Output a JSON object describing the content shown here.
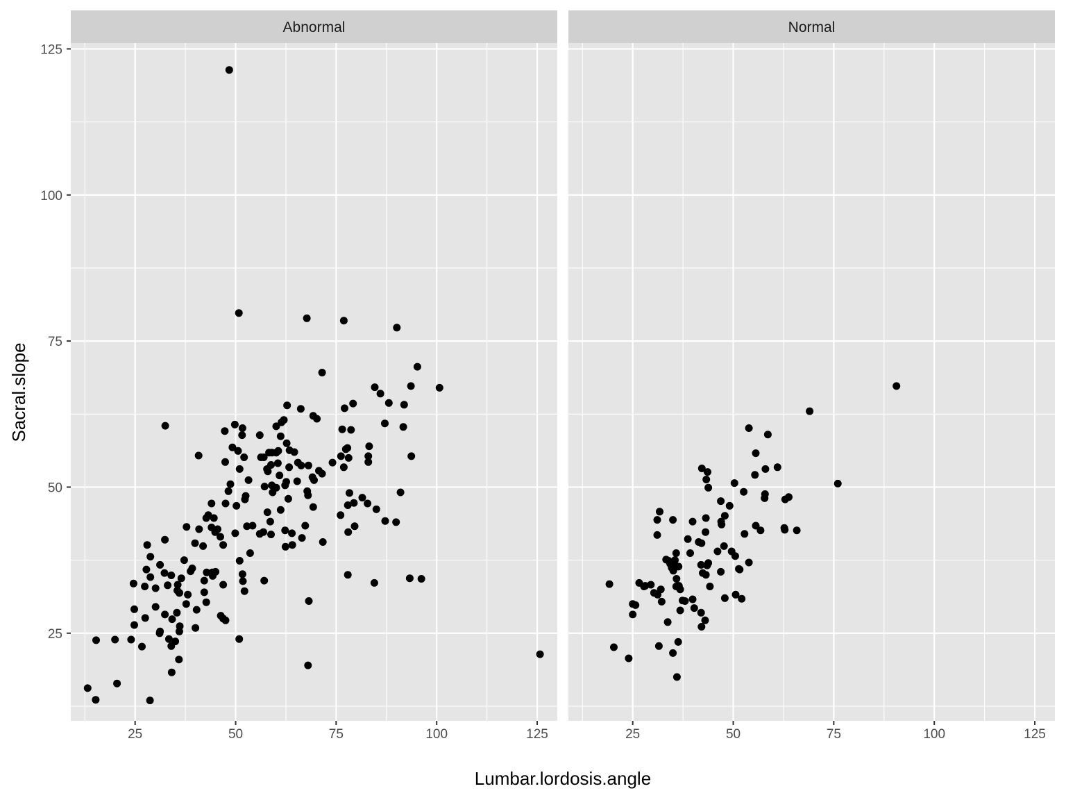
{
  "chart_data": {
    "type": "scatter",
    "facet_variable": "class",
    "xlabel": "Lumbar.lordosis.angle",
    "ylabel": "Sacral.slope",
    "xlim": [
      9,
      130
    ],
    "ylim": [
      10,
      126
    ],
    "x_ticks": [
      25,
      50,
      75,
      100,
      125
    ],
    "y_ticks": [
      25,
      50,
      75,
      100,
      125
    ],
    "grid": true,
    "colors": {
      "panel_bg": "#e5e5e5",
      "strip_bg": "#d0d0d0",
      "grid": "#ffffff",
      "point": "#000000"
    },
    "panels": [
      {
        "label": "Abnormal",
        "points": [
          [
            48.4,
            121.4
          ],
          [
            50.8,
            79.8
          ],
          [
            67.7,
            78.9
          ],
          [
            76.9,
            78.5
          ],
          [
            90.1,
            77.3
          ],
          [
            95.2,
            70.6
          ],
          [
            71.5,
            69.6
          ],
          [
            100.7,
            67.0
          ],
          [
            93.6,
            67.3
          ],
          [
            84.6,
            67.1
          ],
          [
            86.0,
            66.0
          ],
          [
            88.1,
            64.4
          ],
          [
            91.9,
            64.1
          ],
          [
            79.2,
            64.3
          ],
          [
            77.1,
            63.5
          ],
          [
            62.8,
            64.0
          ],
          [
            66.2,
            63.4
          ],
          [
            69.3,
            62.2
          ],
          [
            70.2,
            61.7
          ],
          [
            62.0,
            61.5
          ],
          [
            60.1,
            60.4
          ],
          [
            61.4,
            61.1
          ],
          [
            49.8,
            60.7
          ],
          [
            51.7,
            60.1
          ],
          [
            47.3,
            59.6
          ],
          [
            32.5,
            60.5
          ],
          [
            76.5,
            59.9
          ],
          [
            78.7,
            59.8
          ],
          [
            87.1,
            60.9
          ],
          [
            91.7,
            60.3
          ],
          [
            51.6,
            58.9
          ],
          [
            56.0,
            58.9
          ],
          [
            61.2,
            58.7
          ],
          [
            62.7,
            57.5
          ],
          [
            63.4,
            56.3
          ],
          [
            64.6,
            56.0
          ],
          [
            60.6,
            56.2
          ],
          [
            60.1,
            55.9
          ],
          [
            59.0,
            55.9
          ],
          [
            56.3,
            55.1
          ],
          [
            52.1,
            55.1
          ],
          [
            58.3,
            55.9
          ],
          [
            57.0,
            55.1
          ],
          [
            49.2,
            56.8
          ],
          [
            50.6,
            56.2
          ],
          [
            40.8,
            55.4
          ],
          [
            76.2,
            55.3
          ],
          [
            78.1,
            55.0
          ],
          [
            83.0,
            55.3
          ],
          [
            77.4,
            56.5
          ],
          [
            77.8,
            56.7
          ],
          [
            83.2,
            57.0
          ],
          [
            93.7,
            55.3
          ],
          [
            74.1,
            54.2
          ],
          [
            65.5,
            54.2
          ],
          [
            66.3,
            53.7
          ],
          [
            68.1,
            53.7
          ],
          [
            63.3,
            53.4
          ],
          [
            60.5,
            54.1
          ],
          [
            58.8,
            53.8
          ],
          [
            57.8,
            53.1
          ],
          [
            58.0,
            52.7
          ],
          [
            51.0,
            53.1
          ],
          [
            47.4,
            54.3
          ],
          [
            70.7,
            52.8
          ],
          [
            71.5,
            52.3
          ],
          [
            76.9,
            53.4
          ],
          [
            83.0,
            54.3
          ],
          [
            60.9,
            52.0
          ],
          [
            62.6,
            50.9
          ],
          [
            65.3,
            51.0
          ],
          [
            69.1,
            51.7
          ],
          [
            69.5,
            51.2
          ],
          [
            53.2,
            51.2
          ],
          [
            48.7,
            50.5
          ],
          [
            57.2,
            50.1
          ],
          [
            59.0,
            50.3
          ],
          [
            60.1,
            49.9
          ],
          [
            62.3,
            50.3
          ],
          [
            67.8,
            49.3
          ],
          [
            68.0,
            48.6
          ],
          [
            48.2,
            49.3
          ],
          [
            52.5,
            48.5
          ],
          [
            59.2,
            49.1
          ],
          [
            63.1,
            48.0
          ],
          [
            52.3,
            47.9
          ],
          [
            47.5,
            47.2
          ],
          [
            50.2,
            46.8
          ],
          [
            61.2,
            46.1
          ],
          [
            69.3,
            46.6
          ],
          [
            78.3,
            49.0
          ],
          [
            91.0,
            49.1
          ],
          [
            77.9,
            46.9
          ],
          [
            79.4,
            47.3
          ],
          [
            81.5,
            48.2
          ],
          [
            82.8,
            47.2
          ],
          [
            85.0,
            46.2
          ],
          [
            87.2,
            44.2
          ],
          [
            89.9,
            44.0
          ],
          [
            76.1,
            45.2
          ],
          [
            57.9,
            45.7
          ],
          [
            44.0,
            47.2
          ],
          [
            42.7,
            44.7
          ],
          [
            43.2,
            45.2
          ],
          [
            44.6,
            44.7
          ],
          [
            58.6,
            44.1
          ],
          [
            78.0,
            42.3
          ],
          [
            79.6,
            43.3
          ],
          [
            62.3,
            42.6
          ],
          [
            64.0,
            42.1
          ],
          [
            66.5,
            41.3
          ],
          [
            67.3,
            43.4
          ],
          [
            56.9,
            42.3
          ],
          [
            56.0,
            42.0
          ],
          [
            58.8,
            41.9
          ],
          [
            54.2,
            43.4
          ],
          [
            52.8,
            43.3
          ],
          [
            49.9,
            42.1
          ],
          [
            45.5,
            42.8
          ],
          [
            46.2,
            41.5
          ],
          [
            44.0,
            43.1
          ],
          [
            44.9,
            42.3
          ],
          [
            40.9,
            42.8
          ],
          [
            37.8,
            43.2
          ],
          [
            39.9,
            40.4
          ],
          [
            41.9,
            39.9
          ],
          [
            46.9,
            40.1
          ],
          [
            62.4,
            39.8
          ],
          [
            64.1,
            40.1
          ],
          [
            71.7,
            40.6
          ],
          [
            32.4,
            41.0
          ],
          [
            28.0,
            40.1
          ],
          [
            28.8,
            38.1
          ],
          [
            51.0,
            37.4
          ],
          [
            53.6,
            38.7
          ],
          [
            37.2,
            37.5
          ],
          [
            31.2,
            36.7
          ],
          [
            27.8,
            35.9
          ],
          [
            32.3,
            35.3
          ],
          [
            34.0,
            34.9
          ],
          [
            36.5,
            34.4
          ],
          [
            38.8,
            35.6
          ],
          [
            39.2,
            36.1
          ],
          [
            42.8,
            35.4
          ],
          [
            44.2,
            35.4
          ],
          [
            45.0,
            35.5
          ],
          [
            44.3,
            34.8
          ],
          [
            51.7,
            35.1
          ],
          [
            77.9,
            35.0
          ],
          [
            93.3,
            34.4
          ],
          [
            96.2,
            34.3
          ],
          [
            28.8,
            34.6
          ],
          [
            33.1,
            33.2
          ],
          [
            35.6,
            33.3
          ],
          [
            35.5,
            32.3
          ],
          [
            36.0,
            31.9
          ],
          [
            38.1,
            31.6
          ],
          [
            42.2,
            32.0
          ],
          [
            42.2,
            34.0
          ],
          [
            46.9,
            33.3
          ],
          [
            51.8,
            33.9
          ],
          [
            52.2,
            32.2
          ],
          [
            57.1,
            34.0
          ],
          [
            84.5,
            33.6
          ],
          [
            24.6,
            33.5
          ],
          [
            27.4,
            33.0
          ],
          [
            30.1,
            32.7
          ],
          [
            36.0,
            31.9
          ],
          [
            32.4,
            28.2
          ],
          [
            35.4,
            28.5
          ],
          [
            37.7,
            30.0
          ],
          [
            40.3,
            29.0
          ],
          [
            42.7,
            30.3
          ],
          [
            34.2,
            27.4
          ],
          [
            46.3,
            28.0
          ],
          [
            46.9,
            27.5
          ],
          [
            47.5,
            27.2
          ],
          [
            68.2,
            30.5
          ],
          [
            24.8,
            29.1
          ],
          [
            27.5,
            27.6
          ],
          [
            30.1,
            29.5
          ],
          [
            31.1,
            25.0
          ],
          [
            31.2,
            25.3
          ],
          [
            24.8,
            26.4
          ],
          [
            36.1,
            26.2
          ],
          [
            36.0,
            25.3
          ],
          [
            40.0,
            25.9
          ],
          [
            24.0,
            23.9
          ],
          [
            15.3,
            23.8
          ],
          [
            20.0,
            23.9
          ],
          [
            26.7,
            22.7
          ],
          [
            33.4,
            24.0
          ],
          [
            34.0,
            22.8
          ],
          [
            35.0,
            23.6
          ],
          [
            50.9,
            24.0
          ],
          [
            35.9,
            20.5
          ],
          [
            34.1,
            18.3
          ],
          [
            68.0,
            19.5
          ],
          [
            125.7,
            21.4
          ],
          [
            20.5,
            16.4
          ],
          [
            13.2,
            15.6
          ],
          [
            15.2,
            13.6
          ],
          [
            28.7,
            13.5
          ]
        ]
      },
      {
        "label": "Normal",
        "points": [
          [
            90.6,
            67.3
          ],
          [
            69.0,
            63.0
          ],
          [
            53.9,
            60.1
          ],
          [
            58.6,
            59.0
          ],
          [
            55.6,
            55.8
          ],
          [
            58.0,
            53.1
          ],
          [
            61.0,
            53.4
          ],
          [
            42.2,
            53.2
          ],
          [
            43.6,
            52.6
          ],
          [
            55.4,
            52.1
          ],
          [
            43.3,
            51.3
          ],
          [
            76.0,
            50.6
          ],
          [
            43.8,
            49.9
          ],
          [
            50.3,
            50.7
          ],
          [
            52.6,
            49.2
          ],
          [
            57.9,
            48.8
          ],
          [
            57.8,
            48.1
          ],
          [
            62.9,
            47.9
          ],
          [
            63.8,
            48.3
          ],
          [
            31.7,
            45.8
          ],
          [
            46.9,
            47.6
          ],
          [
            49.1,
            46.8
          ],
          [
            47.9,
            45.1
          ],
          [
            43.2,
            44.7
          ],
          [
            35.0,
            44.4
          ],
          [
            31.1,
            44.4
          ],
          [
            39.9,
            44.1
          ],
          [
            47.0,
            44.1
          ],
          [
            47.1,
            43.6
          ],
          [
            55.6,
            43.4
          ],
          [
            56.8,
            42.6
          ],
          [
            62.7,
            43.0
          ],
          [
            62.8,
            42.7
          ],
          [
            65.8,
            42.6
          ],
          [
            43.1,
            42.3
          ],
          [
            52.8,
            42.0
          ],
          [
            31.1,
            41.8
          ],
          [
            38.7,
            41.1
          ],
          [
            41.4,
            40.6
          ],
          [
            42.1,
            40.4
          ],
          [
            47.7,
            39.9
          ],
          [
            49.6,
            39.0
          ],
          [
            46.1,
            39.0
          ],
          [
            39.3,
            38.7
          ],
          [
            35.8,
            38.7
          ],
          [
            50.5,
            38.2
          ],
          [
            33.3,
            37.6
          ],
          [
            33.9,
            37.4
          ],
          [
            35.5,
            37.5
          ],
          [
            34.3,
            36.9
          ],
          [
            35.5,
            36.6
          ],
          [
            34.7,
            36.2
          ],
          [
            36.4,
            36.4
          ],
          [
            42.0,
            36.7
          ],
          [
            43.5,
            36.6
          ],
          [
            43.8,
            37.0
          ],
          [
            51.4,
            36.0
          ],
          [
            51.6,
            35.9
          ],
          [
            53.9,
            37.1
          ],
          [
            35.1,
            35.7
          ],
          [
            42.4,
            35.3
          ],
          [
            43.2,
            35.0
          ],
          [
            46.9,
            35.5
          ],
          [
            35.9,
            34.3
          ],
          [
            35.8,
            33.0
          ],
          [
            36.5,
            33.1
          ],
          [
            36.8,
            32.5
          ],
          [
            44.2,
            33.0
          ],
          [
            32.0,
            32.5
          ],
          [
            29.5,
            33.3
          ],
          [
            26.6,
            33.6
          ],
          [
            27.8,
            33.0
          ],
          [
            28.1,
            33.1
          ],
          [
            30.3,
            31.9
          ],
          [
            31.2,
            31.6
          ],
          [
            19.2,
            33.4
          ],
          [
            37.4,
            30.6
          ],
          [
            38.0,
            30.5
          ],
          [
            39.9,
            30.8
          ],
          [
            50.6,
            31.6
          ],
          [
            52.1,
            30.9
          ],
          [
            47.9,
            31.0
          ],
          [
            32.2,
            30.4
          ],
          [
            25.0,
            30.0
          ],
          [
            25.7,
            29.8
          ],
          [
            40.3,
            29.3
          ],
          [
            42.0,
            28.5
          ],
          [
            36.8,
            28.9
          ],
          [
            43.0,
            27.2
          ],
          [
            33.7,
            26.9
          ],
          [
            42.1,
            26.1
          ],
          [
            25.0,
            28.2
          ],
          [
            36.3,
            23.5
          ],
          [
            31.5,
            22.8
          ],
          [
            20.3,
            22.6
          ],
          [
            35.0,
            21.6
          ],
          [
            24.0,
            20.7
          ],
          [
            36.0,
            17.5
          ]
        ]
      }
    ]
  }
}
